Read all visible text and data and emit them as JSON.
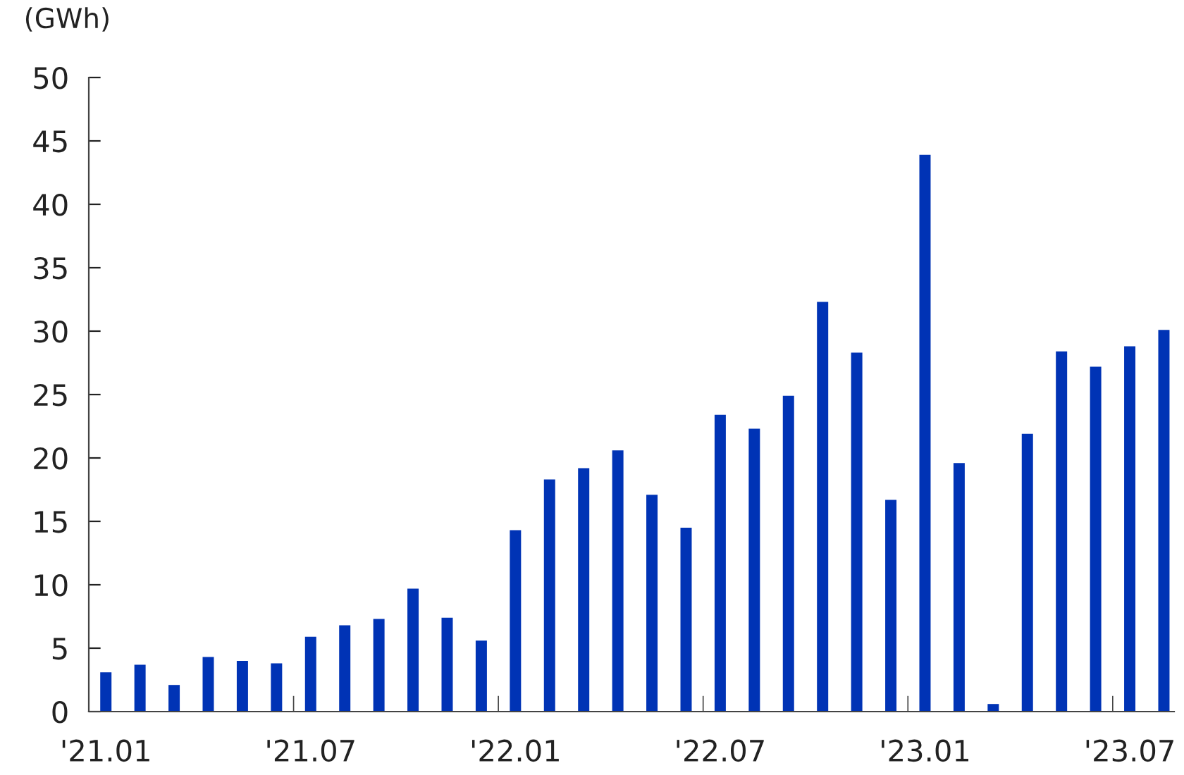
{
  "chart_data": {
    "type": "bar",
    "ylabel": "(GWh)",
    "categories": [
      "'21.01",
      null,
      null,
      null,
      null,
      null,
      "'21.07",
      null,
      null,
      null,
      null,
      null,
      "'22.01",
      null,
      null,
      null,
      null,
      null,
      "'22.07",
      null,
      null,
      null,
      null,
      null,
      "'23.01",
      null,
      null,
      null,
      null,
      null,
      "'23.07",
      null
    ],
    "values": [
      3.1,
      3.7,
      2.1,
      4.3,
      4.0,
      3.8,
      5.9,
      6.8,
      7.3,
      9.7,
      7.4,
      5.6,
      14.3,
      18.3,
      19.2,
      20.6,
      17.1,
      14.5,
      23.4,
      22.3,
      24.9,
      32.3,
      28.3,
      16.7,
      43.9,
      19.6,
      0.6,
      21.9,
      28.4,
      27.2,
      28.8,
      30.1
    ],
    "color": "#0033b5",
    "ylim": [
      0,
      50
    ],
    "yticks": [
      0,
      5,
      10,
      15,
      20,
      25,
      30,
      35,
      40,
      45,
      50
    ],
    "grid": false,
    "legend": false
  }
}
